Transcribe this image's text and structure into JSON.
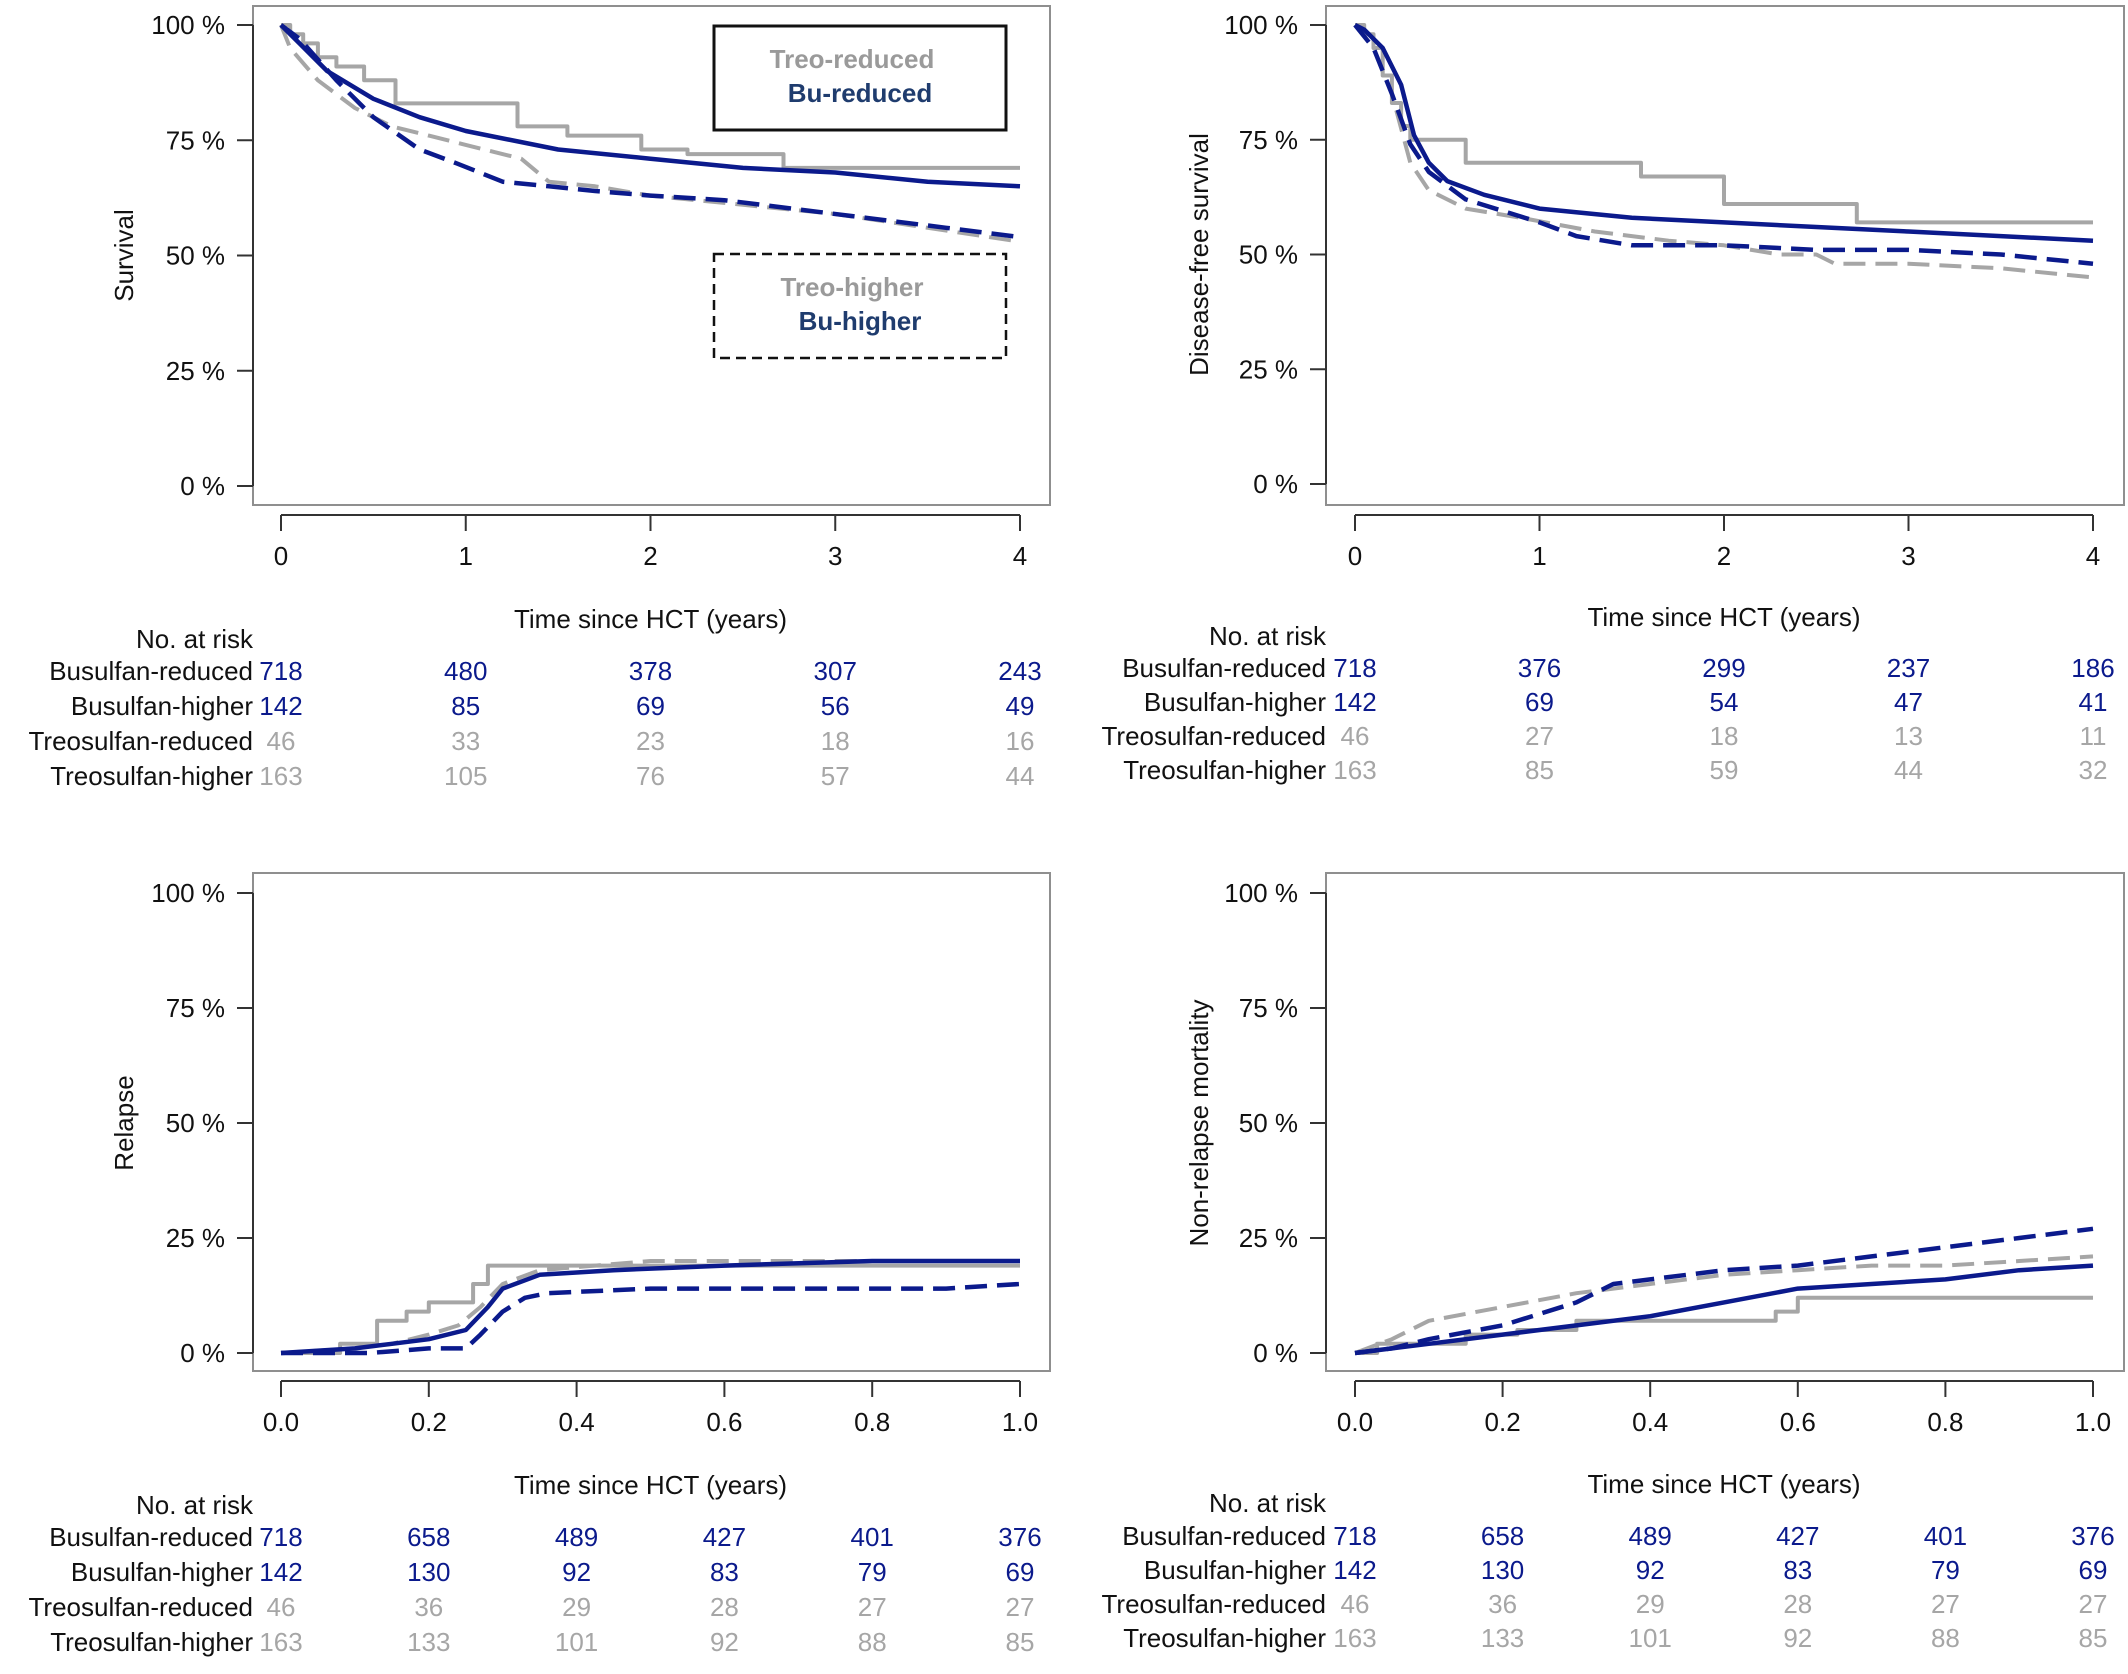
{
  "colors": {
    "busulfan": "#0b1a8c",
    "treosulfan": "#a6a6a6",
    "legend_bu": "#1f3c6e",
    "legend_treo": "#9a9a9a"
  },
  "chart_data": [
    {
      "type": "line",
      "ylabel": "Survival",
      "xlabel": "Time since HCT (years)",
      "xlim": [
        0,
        4
      ],
      "ylim": [
        0,
        100
      ],
      "xticks": [
        "0",
        "1",
        "2",
        "3",
        "4"
      ],
      "yticks": [
        "0 %",
        "25 %",
        "50 %",
        "75 %",
        "100 %"
      ],
      "grid": false,
      "legend": [
        {
          "box": "solid",
          "position": "top-right",
          "entries": [
            "Treo-reduced",
            "Bu-reduced"
          ]
        },
        {
          "box": "dashed",
          "position": "middle-right",
          "entries": [
            "Treo-higher",
            "Bu-higher"
          ]
        }
      ],
      "series": [
        {
          "key": "treo_reduced",
          "color": "#a6a6a6",
          "dash": "solid",
          "step": true,
          "x": [
            0,
            0.05,
            0.12,
            0.2,
            0.3,
            0.45,
            0.62,
            1.0,
            1.28,
            1.35,
            1.55,
            1.95,
            2.2,
            2.72,
            3.2,
            4.0
          ],
          "y": [
            100,
            98,
            96,
            93,
            91,
            88,
            83,
            83,
            78,
            78,
            76,
            73,
            72,
            69,
            69,
            69
          ]
        },
        {
          "key": "bu_reduced",
          "color": "#0b1a8c",
          "dash": "solid",
          "step": false,
          "x": [
            0,
            0.1,
            0.25,
            0.5,
            0.75,
            1.0,
            1.5,
            2.0,
            2.5,
            3.0,
            3.5,
            4.0
          ],
          "y": [
            100,
            96,
            90,
            84,
            80,
            77,
            73,
            71,
            69,
            68,
            66,
            65
          ]
        },
        {
          "key": "bu_higher",
          "color": "#0b1a8c",
          "dash": "dashed",
          "step": false,
          "x": [
            0,
            0.1,
            0.3,
            0.5,
            0.75,
            0.95,
            1.2,
            1.45,
            1.7,
            2.0,
            2.4,
            2.8,
            3.2,
            3.6,
            4.0
          ],
          "y": [
            100,
            97,
            88,
            80,
            73,
            70,
            66,
            65,
            64,
            63,
            62,
            60,
            58,
            56,
            54
          ]
        },
        {
          "key": "treo_higher",
          "color": "#a6a6a6",
          "dash": "dashed",
          "step": false,
          "x": [
            0,
            0.05,
            0.2,
            0.4,
            0.6,
            0.8,
            1.0,
            1.3,
            1.45,
            1.7,
            2.0,
            2.5,
            3.0,
            3.5,
            4.0
          ],
          "y": [
            100,
            95,
            88,
            82,
            78,
            76,
            74,
            71,
            66,
            65,
            63,
            61,
            59,
            56,
            53
          ]
        }
      ],
      "at_risk": {
        "title": "No. at risk",
        "ticks": [
          "0",
          "1",
          "2",
          "3",
          "4"
        ],
        "rows": [
          {
            "label": "Busulfan-reduced",
            "color": "#0b1a8c",
            "values": [
              "718",
              "480",
              "378",
              "307",
              "243"
            ]
          },
          {
            "label": "Busulfan-higher",
            "color": "#0b1a8c",
            "values": [
              "142",
              "85",
              "69",
              "56",
              "49"
            ]
          },
          {
            "label": "Treosulfan-reduced",
            "color": "#a6a6a6",
            "values": [
              "46",
              "33",
              "23",
              "18",
              "16"
            ]
          },
          {
            "label": "Treosulfan-higher",
            "color": "#a6a6a6",
            "values": [
              "163",
              "105",
              "76",
              "57",
              "44"
            ]
          }
        ]
      }
    },
    {
      "type": "line",
      "ylabel": "Disease-free survival",
      "xlabel": "Time since HCT (years)",
      "xlim": [
        0,
        4
      ],
      "ylim": [
        0,
        100
      ],
      "xticks": [
        "0",
        "1",
        "2",
        "3",
        "4"
      ],
      "yticks": [
        "0 %",
        "25 %",
        "50 %",
        "75 %",
        "100 %"
      ],
      "grid": false,
      "legend": [],
      "series": [
        {
          "key": "treo_reduced",
          "color": "#a6a6a6",
          "dash": "solid",
          "step": true,
          "x": [
            0,
            0.05,
            0.1,
            0.15,
            0.2,
            0.25,
            0.3,
            0.45,
            0.6,
            1.05,
            1.55,
            2.0,
            2.72,
            4.0
          ],
          "y": [
            100,
            98,
            95,
            89,
            83,
            78,
            75,
            75,
            70,
            70,
            67,
            61,
            57,
            57
          ]
        },
        {
          "key": "bu_reduced",
          "color": "#0b1a8c",
          "dash": "solid",
          "step": false,
          "x": [
            0,
            0.05,
            0.15,
            0.25,
            0.32,
            0.4,
            0.5,
            0.7,
            1.0,
            1.5,
            2.0,
            2.5,
            3.0,
            3.5,
            4.0
          ],
          "y": [
            100,
            99,
            95,
            87,
            76,
            70,
            66,
            63,
            60,
            58,
            57,
            56,
            55,
            54,
            53
          ]
        },
        {
          "key": "bu_higher",
          "color": "#0b1a8c",
          "dash": "dashed",
          "step": false,
          "x": [
            0,
            0.1,
            0.2,
            0.3,
            0.4,
            0.6,
            1.0,
            1.2,
            1.5,
            2.0,
            2.5,
            3.0,
            3.5,
            4.0
          ],
          "y": [
            100,
            95,
            85,
            74,
            68,
            62,
            57,
            54,
            52,
            52,
            51,
            51,
            50,
            48
          ]
        },
        {
          "key": "treo_higher",
          "color": "#a6a6a6",
          "dash": "dashed",
          "step": false,
          "x": [
            0,
            0.1,
            0.2,
            0.3,
            0.4,
            0.6,
            0.9,
            1.3,
            1.7,
            2.0,
            2.3,
            2.5,
            2.6,
            3.0,
            3.5,
            4.0
          ],
          "y": [
            100,
            95,
            85,
            70,
            64,
            60,
            58,
            55,
            53,
            52,
            50,
            50,
            48,
            48,
            47,
            45
          ]
        }
      ],
      "at_risk": {
        "title": "No. at risk",
        "ticks": [
          "0",
          "1",
          "2",
          "3",
          "4"
        ],
        "rows": [
          {
            "label": "Busulfan-reduced",
            "color": "#0b1a8c",
            "values": [
              "718",
              "376",
              "299",
              "237",
              "186"
            ]
          },
          {
            "label": "Busulfan-higher",
            "color": "#0b1a8c",
            "values": [
              "142",
              "69",
              "54",
              "47",
              "41"
            ]
          },
          {
            "label": "Treosulfan-reduced",
            "color": "#a6a6a6",
            "values": [
              "46",
              "27",
              "18",
              "13",
              "11"
            ]
          },
          {
            "label": "Treosulfan-higher",
            "color": "#a6a6a6",
            "values": [
              "163",
              "85",
              "59",
              "44",
              "32"
            ]
          }
        ]
      }
    },
    {
      "type": "line",
      "ylabel": "Relapse",
      "xlabel": "Time since HCT (years)",
      "xlim": [
        0,
        1
      ],
      "ylim": [
        0,
        100
      ],
      "xticks": [
        "0.0",
        "0.2",
        "0.4",
        "0.6",
        "0.8",
        "1.0"
      ],
      "yticks": [
        "0 %",
        "25 %",
        "50 %",
        "75 %",
        "100 %"
      ],
      "grid": false,
      "legend": [],
      "series": [
        {
          "key": "treo_reduced",
          "color": "#a6a6a6",
          "dash": "solid",
          "step": true,
          "x": [
            0,
            0.08,
            0.13,
            0.17,
            0.2,
            0.24,
            0.26,
            0.28,
            0.3,
            0.5,
            1.0
          ],
          "y": [
            0,
            2,
            7,
            9,
            11,
            11,
            15,
            19,
            19,
            19,
            19
          ]
        },
        {
          "key": "bu_reduced",
          "color": "#0b1a8c",
          "dash": "solid",
          "step": false,
          "x": [
            0,
            0.1,
            0.15,
            0.2,
            0.25,
            0.28,
            0.3,
            0.35,
            0.45,
            0.6,
            0.8,
            1.0
          ],
          "y": [
            0,
            1,
            2,
            3,
            5,
            10,
            14,
            17,
            18,
            19,
            20,
            20
          ]
        },
        {
          "key": "bu_higher",
          "color": "#0b1a8c",
          "dash": "dashed",
          "step": false,
          "x": [
            0,
            0.12,
            0.2,
            0.25,
            0.27,
            0.3,
            0.33,
            0.36,
            0.5,
            0.7,
            0.9,
            1.0
          ],
          "y": [
            0,
            0,
            1,
            1,
            4,
            9,
            12,
            13,
            14,
            14,
            14,
            15
          ]
        },
        {
          "key": "treo_higher",
          "color": "#a6a6a6",
          "dash": "dashed",
          "step": false,
          "x": [
            0,
            0.1,
            0.15,
            0.2,
            0.24,
            0.27,
            0.3,
            0.35,
            0.5,
            0.7,
            1.0
          ],
          "y": [
            0,
            1,
            2,
            4,
            6,
            10,
            15,
            18,
            20,
            20,
            20
          ]
        }
      ],
      "at_risk": {
        "title": "No. at risk",
        "ticks": [
          "0.0",
          "0.2",
          "0.4",
          "0.6",
          "0.8",
          "1.0"
        ],
        "rows": [
          {
            "label": "Busulfan-reduced",
            "color": "#0b1a8c",
            "values": [
              "718",
              "658",
              "489",
              "427",
              "401",
              "376"
            ]
          },
          {
            "label": "Busulfan-higher",
            "color": "#0b1a8c",
            "values": [
              "142",
              "130",
              "92",
              "83",
              "79",
              "69"
            ]
          },
          {
            "label": "Treosulfan-reduced",
            "color": "#a6a6a6",
            "values": [
              "46",
              "36",
              "29",
              "28",
              "27",
              "27"
            ]
          },
          {
            "label": "Treosulfan-higher",
            "color": "#a6a6a6",
            "values": [
              "163",
              "133",
              "101",
              "92",
              "88",
              "85"
            ]
          }
        ]
      }
    },
    {
      "type": "line",
      "ylabel": "Non-relapse mortality",
      "xlabel": "Time since HCT (years)",
      "xlim": [
        0,
        1
      ],
      "ylim": [
        0,
        100
      ],
      "xticks": [
        "0.0",
        "0.2",
        "0.4",
        "0.6",
        "0.8",
        "1.0"
      ],
      "yticks": [
        "0 %",
        "25 %",
        "50 %",
        "75 %",
        "100 %"
      ],
      "grid": false,
      "legend": [],
      "series": [
        {
          "key": "treo_reduced",
          "color": "#a6a6a6",
          "dash": "solid",
          "step": true,
          "x": [
            0,
            0.03,
            0.15,
            0.22,
            0.3,
            0.57,
            0.6,
            1.0
          ],
          "y": [
            0,
            2,
            4,
            5,
            7,
            9,
            12,
            12
          ]
        },
        {
          "key": "bu_reduced",
          "color": "#0b1a8c",
          "dash": "solid",
          "step": false,
          "x": [
            0,
            0.05,
            0.1,
            0.2,
            0.3,
            0.4,
            0.5,
            0.6,
            0.7,
            0.8,
            0.9,
            1.0
          ],
          "y": [
            0,
            1,
            2,
            4,
            6,
            8,
            11,
            14,
            15,
            16,
            18,
            19
          ]
        },
        {
          "key": "bu_higher",
          "color": "#0b1a8c",
          "dash": "dashed",
          "step": false,
          "x": [
            0,
            0.05,
            0.1,
            0.2,
            0.3,
            0.35,
            0.4,
            0.5,
            0.6,
            0.7,
            0.8,
            0.9,
            1.0
          ],
          "y": [
            0,
            1,
            3,
            6,
            11,
            15,
            16,
            18,
            19,
            21,
            23,
            25,
            27
          ]
        },
        {
          "key": "treo_higher",
          "color": "#a6a6a6",
          "dash": "dashed",
          "step": false,
          "x": [
            0,
            0.05,
            0.1,
            0.2,
            0.3,
            0.4,
            0.5,
            0.6,
            0.7,
            0.8,
            0.9,
            1.0
          ],
          "y": [
            0,
            3,
            7,
            10,
            13,
            15,
            17,
            18,
            19,
            19,
            20,
            21
          ]
        }
      ],
      "at_risk": {
        "title": "No. at risk",
        "ticks": [
          "0.0",
          "0.2",
          "0.4",
          "0.6",
          "0.8",
          "1.0"
        ],
        "rows": [
          {
            "label": "Busulfan-reduced",
            "color": "#0b1a8c",
            "values": [
              "718",
              "658",
              "489",
              "427",
              "401",
              "376"
            ]
          },
          {
            "label": "Busulfan-higher",
            "color": "#0b1a8c",
            "values": [
              "142",
              "130",
              "92",
              "83",
              "79",
              "69"
            ]
          },
          {
            "label": "Treosulfan-reduced",
            "color": "#a6a6a6",
            "values": [
              "46",
              "36",
              "29",
              "28",
              "27",
              "27"
            ]
          },
          {
            "label": "Treosulfan-higher",
            "color": "#a6a6a6",
            "values": [
              "163",
              "133",
              "101",
              "92",
              "88",
              "85"
            ]
          }
        ]
      }
    }
  ]
}
